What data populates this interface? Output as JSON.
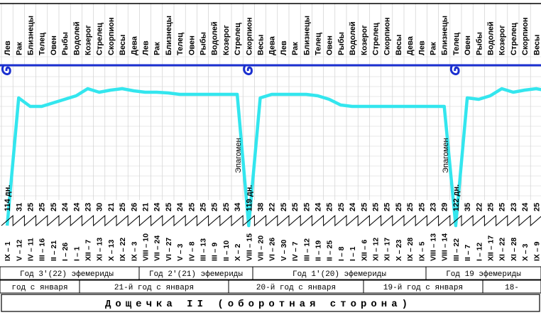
{
  "chart_data": {
    "type": "table",
    "caption": "Дощечка II (оборотная сторона)",
    "zodiac_columns": [
      "Лев",
      "Рак",
      "Близнецы",
      "Телец",
      "Овен",
      "Рыбы",
      "Водолей",
      "Козерог",
      "Стрелец",
      "Скорпион",
      "Весы",
      "Дева",
      "Лев",
      "Рак",
      "Близнецы",
      "Телец",
      "Овен",
      "Рыбы",
      "Водолей",
      "Козерог",
      "Стрелец",
      "Скорпион",
      "Весы",
      "Дева",
      "Лев",
      "Рак",
      "Близнецы",
      "Телец",
      "Овен",
      "Рыбы",
      "Водолей",
      "Козерог",
      "Стрелец",
      "Скорпион",
      "Весы",
      "Дева",
      "Лев",
      "Рак",
      "Близнецы",
      "Телец",
      "Овен",
      "Рыбы",
      "Водолей",
      "Козерог",
      "Стрелец",
      "Скорпион",
      "Весы"
    ],
    "day_counts": [
      "114 дн.",
      "31",
      "25",
      "25",
      "25",
      "24",
      "24",
      "23",
      "30",
      "21",
      "25",
      "26",
      "21",
      "24",
      "25",
      "24",
      "25",
      "25",
      "25",
      "25",
      "34",
      "119 дн.",
      "38",
      "22",
      "25",
      "25",
      "25",
      "24",
      "25",
      "25",
      "24",
      "25",
      "25",
      "25",
      "25",
      "25",
      "25",
      "23",
      "29",
      "122 дн.",
      "35",
      "22",
      "25",
      "25",
      "23",
      "24",
      "25",
      "25",
      "23"
    ],
    "date_marks": [
      "IX – 1",
      "V – 12",
      "IV – 11",
      "III – 16",
      "II – 21",
      "I – 26",
      "I – 1",
      "XII – 7",
      "XI – 13",
      "X – 13",
      "IX – 22",
      "IX – 3",
      "VIII – 10",
      "VII – 24",
      "VI – 27",
      "V – 3",
      "IV – 8",
      "III – 13",
      "III – 9",
      "II – 10",
      "X – 2",
      "VIII – 15",
      "VII – 20",
      "VI – 26",
      "V – 30",
      "IV – 7",
      "III – 12",
      "II – 19",
      "II – 25",
      "I – 8",
      "I – 1",
      "XII – 6",
      "XI – 12",
      "XI – 17",
      "X – 23",
      "IX – 28",
      "IX – 5",
      "VIII – 13",
      "VIII – 14",
      "III – 22",
      "II – 7",
      "I – 12",
      "XII – 17",
      "XI – 22",
      "XI – 28",
      "X – 3",
      "IX – 9"
    ],
    "epagomen_label": "Эпагомен",
    "serpent_path": [
      150,
      150,
      150,
      150,
      145,
      140,
      135,
      125,
      130,
      127,
      125,
      128,
      130,
      130,
      131,
      133,
      133,
      133,
      133,
      133,
      133,
      133,
      133,
      133,
      133,
      133,
      133,
      135,
      140,
      148,
      150,
      150,
      150,
      150,
      150,
      150
    ],
    "ephemeris_years": [
      "Год 3'(22) эфемериды",
      "Год 2'(21) эфемериды",
      "Год 1'(20) эфемериды",
      "Год 19 эфемериды"
    ],
    "years_from_january": [
      "год с января",
      "21-й год с января",
      "20-й год с января",
      "19-й год с января",
      "18-"
    ]
  }
}
